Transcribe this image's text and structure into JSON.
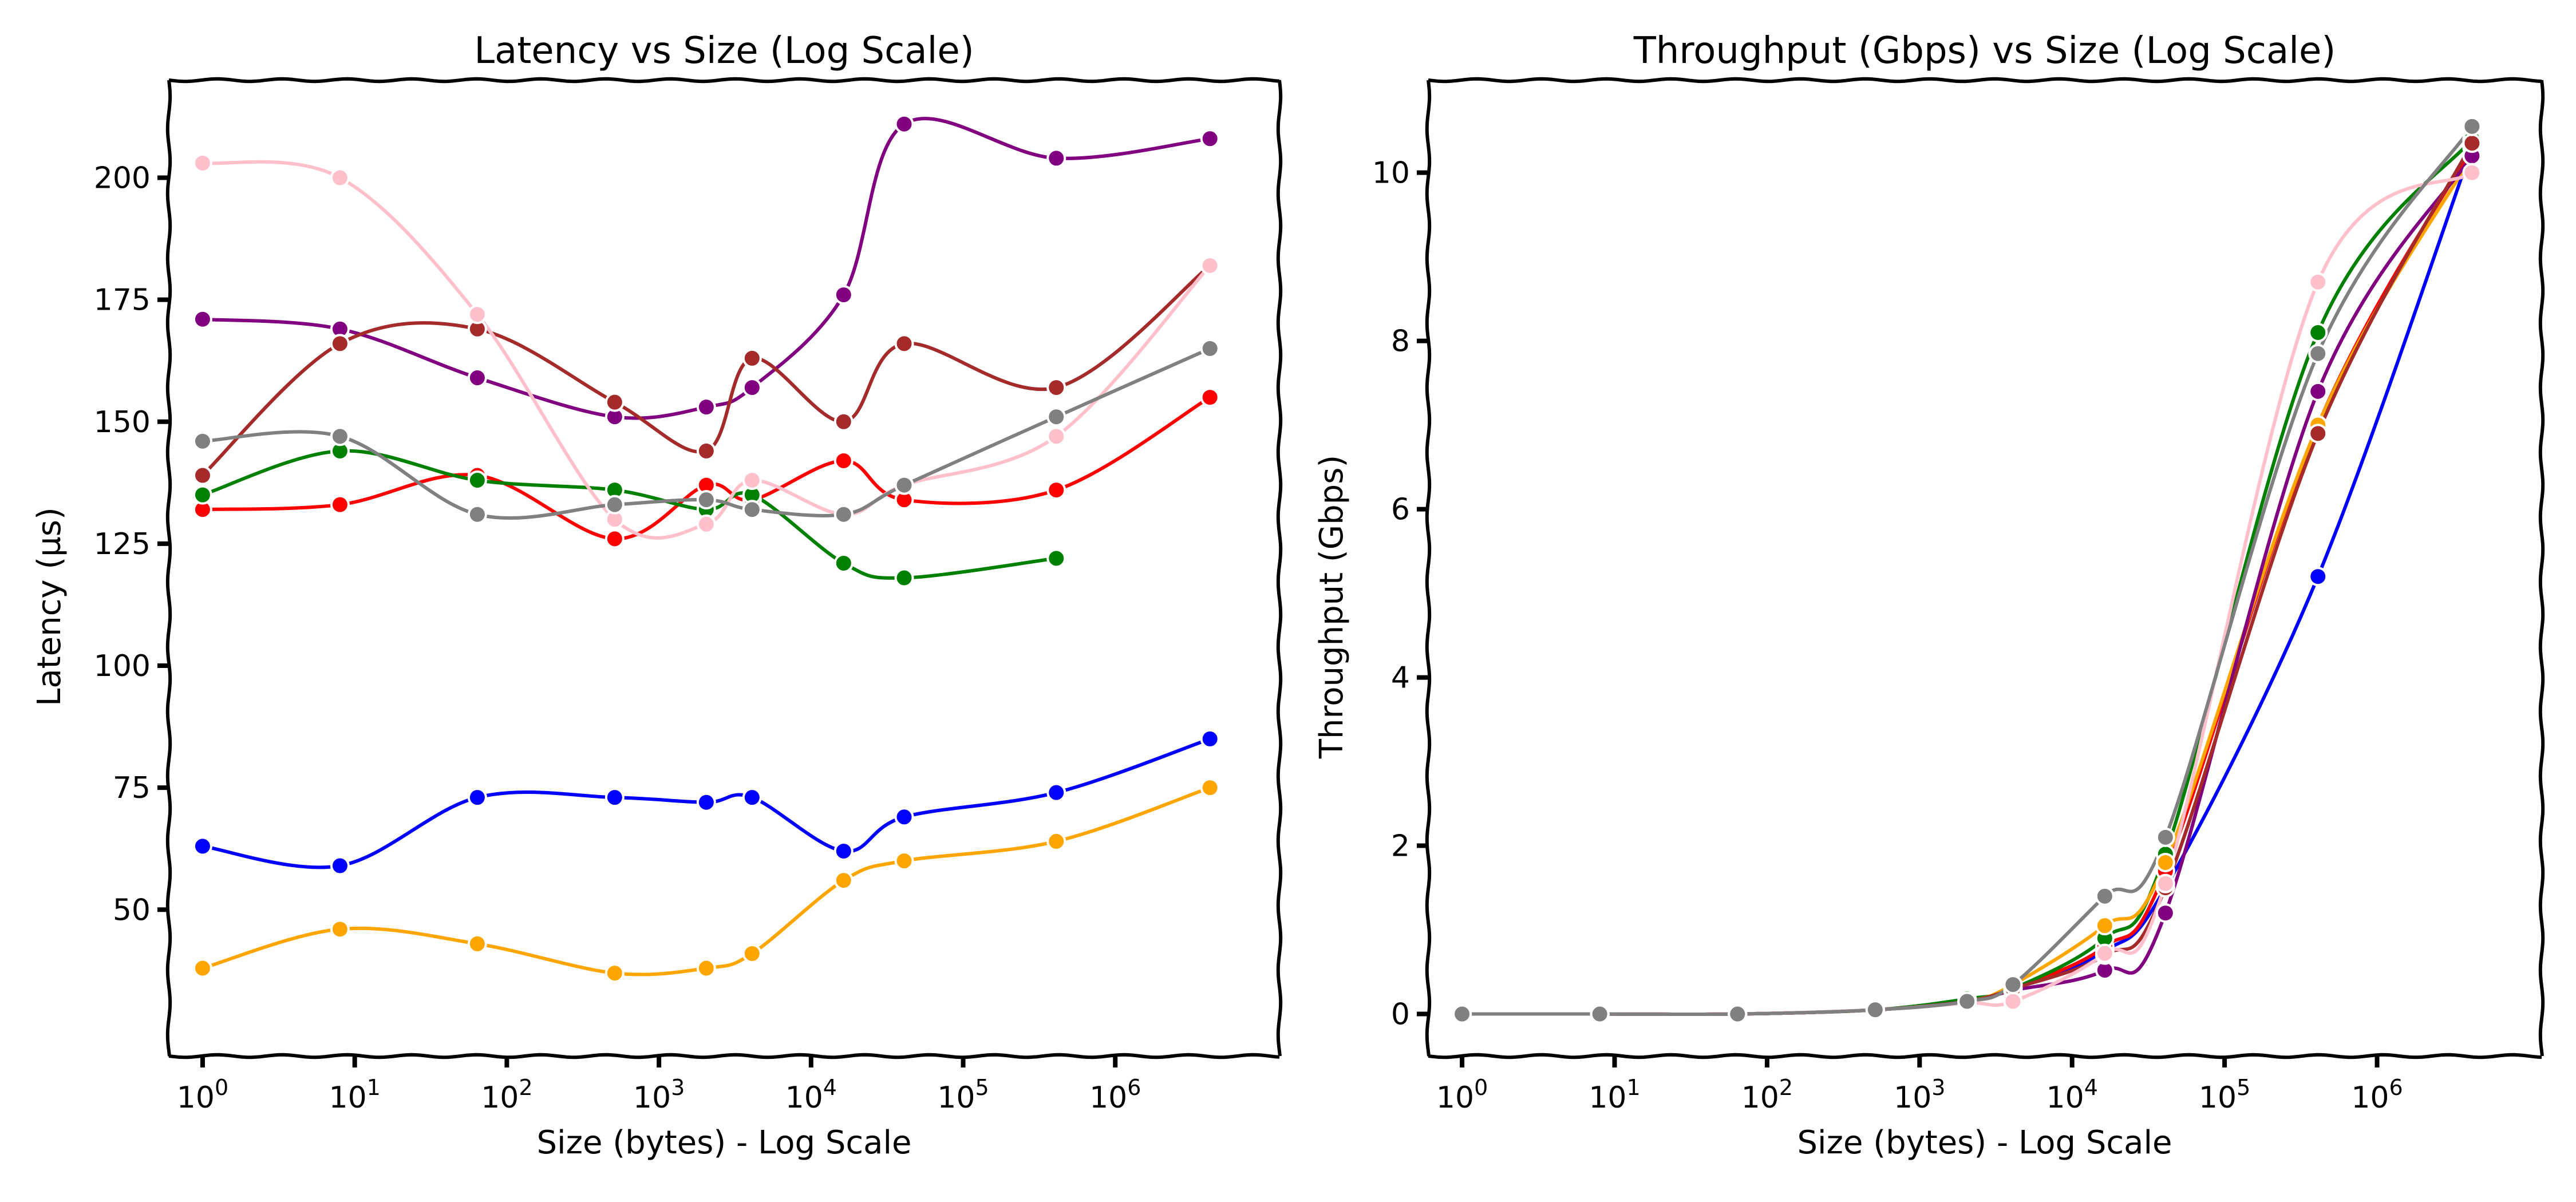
{
  "chart_data": [
    {
      "type": "line",
      "title": "Latency vs Size (Log Scale)",
      "xlabel": "Size (bytes) - Log Scale",
      "ylabel": "Latency (µs)",
      "xscale": "log",
      "xlim": [
        0.6,
        12000000
      ],
      "ylim": [
        20,
        220
      ],
      "xticks": [
        1,
        10,
        100,
        1000,
        10000,
        100000,
        1000000
      ],
      "xtick_labels": [
        "10^0",
        "10^1",
        "10^2",
        "10^3",
        "10^4",
        "10^5",
        "10^6"
      ],
      "yticks": [
        50,
        75,
        100,
        125,
        150,
        175,
        200
      ],
      "ytick_labels": [
        "50",
        "75",
        "100",
        "125",
        "150",
        "175",
        "200"
      ],
      "grid": false,
      "series": [
        {
          "color": "#ff0000",
          "x": [
            1,
            8,
            64,
            512,
            2048,
            4096,
            16384,
            40960,
            409600,
            4194304
          ],
          "values": [
            132,
            133,
            139,
            126,
            137,
            134,
            142,
            134,
            136,
            155
          ]
        },
        {
          "color": "#0000ff",
          "x": [
            1,
            8,
            64,
            512,
            2048,
            4096,
            16384,
            40960,
            409600,
            4194304
          ],
          "values": [
            63,
            59,
            73,
            73,
            72,
            73,
            62,
            69,
            74,
            85
          ]
        },
        {
          "color": "#008000",
          "x": [
            1,
            8,
            64,
            512,
            2048,
            4096,
            16384,
            40960,
            409600
          ],
          "values": [
            135,
            144,
            138,
            136,
            132,
            135,
            121,
            118,
            122
          ]
        },
        {
          "color": "#ffa500",
          "x": [
            1,
            8,
            64,
            512,
            2048,
            4096,
            16384,
            40960,
            409600,
            4194304
          ],
          "values": [
            38,
            46,
            43,
            37,
            38,
            41,
            56,
            60,
            64,
            75
          ]
        },
        {
          "color": "#800080",
          "x": [
            1,
            8,
            64,
            512,
            2048,
            4096,
            16384,
            40960,
            409600,
            4194304
          ],
          "values": [
            171,
            169,
            159,
            151,
            153,
            157,
            176,
            211,
            204,
            208
          ]
        },
        {
          "color": "#a52a2a",
          "x": [
            1,
            8,
            64,
            512,
            2048,
            4096,
            16384,
            40960,
            409600,
            4194304
          ],
          "values": [
            139,
            166,
            169,
            154,
            144,
            163,
            150,
            166,
            157,
            182
          ]
        },
        {
          "color": "#ffc0cb",
          "x": [
            1,
            8,
            64,
            512,
            2048,
            4096,
            16384,
            40960,
            409600,
            4194304
          ],
          "values": [
            203,
            200,
            172,
            130,
            129,
            138,
            131,
            137,
            147,
            182
          ]
        },
        {
          "color": "#808080",
          "x": [
            1,
            8,
            64,
            512,
            2048,
            4096,
            16384,
            40960,
            409600,
            4194304
          ],
          "values": [
            146,
            147,
            131,
            133,
            134,
            132,
            131,
            137,
            151,
            165
          ]
        }
      ]
    },
    {
      "type": "line",
      "title": "Throughput (Gbps) vs Size (Log Scale)",
      "xlabel": "Size (bytes) - Log Scale",
      "ylabel": "Throughput (Gbps)",
      "xscale": "log",
      "xlim": [
        0.6,
        12000000
      ],
      "ylim": [
        -0.5,
        11.1
      ],
      "xticks": [
        1,
        10,
        100,
        1000,
        10000,
        100000,
        1000000
      ],
      "xtick_labels": [
        "10^0",
        "10^1",
        "10^2",
        "10^3",
        "10^4",
        "10^5",
        "10^6"
      ],
      "yticks": [
        0,
        2,
        4,
        6,
        8,
        10
      ],
      "ytick_labels": [
        "0",
        "2",
        "4",
        "6",
        "8",
        "10"
      ],
      "grid": false,
      "series": [
        {
          "color": "#0000ff",
          "x": [
            1,
            8,
            64,
            512,
            2048,
            4096,
            16384,
            40960,
            409600,
            4194304
          ],
          "values": [
            0,
            0,
            0,
            0.05,
            0.15,
            0.3,
            0.75,
            1.5,
            5.2,
            10.3
          ]
        },
        {
          "color": "#ff0000",
          "x": [
            1,
            8,
            64,
            512,
            2048,
            4096,
            16384,
            40960,
            409600,
            4194304
          ],
          "values": [
            0,
            0,
            0,
            0.05,
            0.15,
            0.3,
            0.8,
            1.7,
            7.0,
            10.3
          ]
        },
        {
          "color": "#008000",
          "x": [
            1,
            8,
            64,
            512,
            2048,
            4096,
            16384,
            40960,
            409600,
            4194304
          ],
          "values": [
            0,
            0,
            0,
            0.05,
            0.18,
            0.3,
            0.9,
            1.9,
            8.1,
            10.4
          ]
        },
        {
          "color": "#ffa500",
          "x": [
            1,
            8,
            64,
            512,
            2048,
            4096,
            16384,
            40960,
            409600,
            4194304
          ],
          "values": [
            0,
            0,
            0,
            0.05,
            0.15,
            0.35,
            1.05,
            1.8,
            7.0,
            10.2
          ]
        },
        {
          "color": "#800080",
          "x": [
            1,
            8,
            64,
            512,
            2048,
            4096,
            16384,
            40960,
            409600,
            4194304
          ],
          "values": [
            0,
            0,
            0,
            0.05,
            0.15,
            0.28,
            0.52,
            1.2,
            7.4,
            10.2
          ]
        },
        {
          "color": "#a52a2a",
          "x": [
            1,
            8,
            64,
            512,
            2048,
            4096,
            16384,
            40960,
            409600,
            4194304
          ],
          "values": [
            0,
            0,
            0,
            0.05,
            0.15,
            0.3,
            0.7,
            1.5,
            6.9,
            10.35
          ]
        },
        {
          "color": "#ffc0cb",
          "x": [
            1,
            8,
            64,
            512,
            2048,
            4096,
            16384,
            40960,
            409600,
            4194304
          ],
          "values": [
            0,
            0,
            0,
            0.05,
            0.13,
            0.15,
            0.72,
            1.55,
            8.7,
            10.0
          ]
        },
        {
          "color": "#808080",
          "x": [
            1,
            8,
            64,
            512,
            2048,
            4096,
            16384,
            40960,
            409600,
            4194304
          ],
          "values": [
            0,
            0,
            0,
            0.05,
            0.15,
            0.35,
            1.4,
            2.1,
            7.85,
            10.55
          ]
        }
      ]
    }
  ]
}
